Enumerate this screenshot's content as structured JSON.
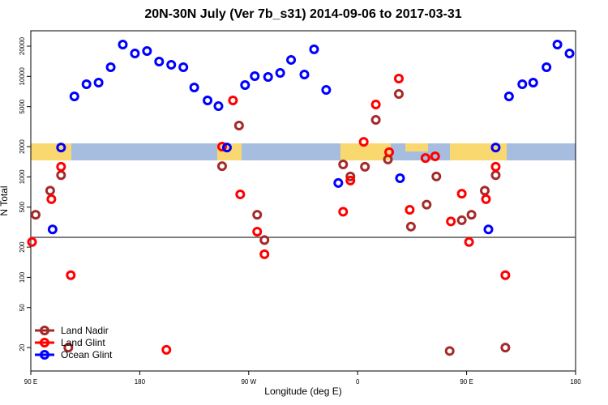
{
  "chart_data": {
    "type": "scatter",
    "title": "20N-30N July (Ver 7b_s31)   2014-09-06 to 2017-03-31",
    "x_label": "Longitude (deg E)",
    "y_label": "N Total",
    "log_y": true,
    "xlim": [
      90,
      540
    ],
    "ylim": [
      11.7,
      28450
    ],
    "xticks": [
      {
        "value": 90,
        "label": "90 E"
      },
      {
        "value": 180,
        "label": "180"
      },
      {
        "value": 270,
        "label": "90 W"
      },
      {
        "value": 360,
        "label": "0"
      },
      {
        "value": 450,
        "label": "90 E"
      },
      {
        "value": 540,
        "label": "180"
      }
    ],
    "yticks": [
      20,
      50,
      100,
      200,
      500,
      1000,
      2000,
      5000,
      10000,
      20000
    ],
    "reference_line": 250,
    "legend": "bottom-left",
    "series": [
      {
        "name": "Land Nadir",
        "color": "#a52a2a",
        "x": [
          94,
          106,
          115,
          248,
          262,
          277,
          283,
          348,
          354,
          366,
          375,
          385,
          394,
          404,
          417,
          425,
          446,
          454,
          465,
          474,
          436,
          482,
          121
        ],
        "values": [
          420,
          730,
          1040,
          1280,
          3240,
          420,
          235,
          1330,
          1010,
          1260,
          3690,
          1490,
          6690,
          320,
          530,
          1010,
          370,
          420,
          730,
          1040,
          18.5,
          20,
          20
        ]
      },
      {
        "name": "Land Glint",
        "color": "#ff0000",
        "x": [
          91,
          115,
          107,
          123,
          202,
          248,
          257,
          263,
          277,
          283,
          348,
          354,
          365,
          375,
          386,
          394,
          403,
          416,
          424,
          437,
          446,
          452,
          466,
          474,
          482
        ],
        "values": [
          225,
          1260,
          600,
          105,
          19,
          2000,
          5770,
          670,
          285,
          170,
          450,
          920,
          2230,
          5250,
          1760,
          9510,
          470,
          1540,
          1600,
          360,
          680,
          225,
          600,
          1260,
          105
        ]
      },
      {
        "name": "Ocean Glint",
        "color": "#0000ff",
        "x": [
          115,
          108,
          126,
          136,
          146,
          156,
          166,
          176,
          186,
          196,
          206,
          216,
          225,
          236,
          245,
          252,
          267,
          275,
          286,
          296,
          305,
          316,
          324,
          334,
          344,
          395,
          468,
          474,
          485,
          496,
          505,
          516,
          525,
          535
        ],
        "values": [
          1960,
          300,
          6320,
          8360,
          8670,
          12340,
          20750,
          16900,
          17900,
          14060,
          13060,
          12340,
          7760,
          5770,
          5060,
          1960,
          8200,
          10060,
          9880,
          10840,
          14600,
          10440,
          18600,
          7340,
          870,
          970,
          300,
          1960,
          6320,
          8360,
          8670,
          12340,
          20750,
          16900
        ]
      }
    ]
  }
}
